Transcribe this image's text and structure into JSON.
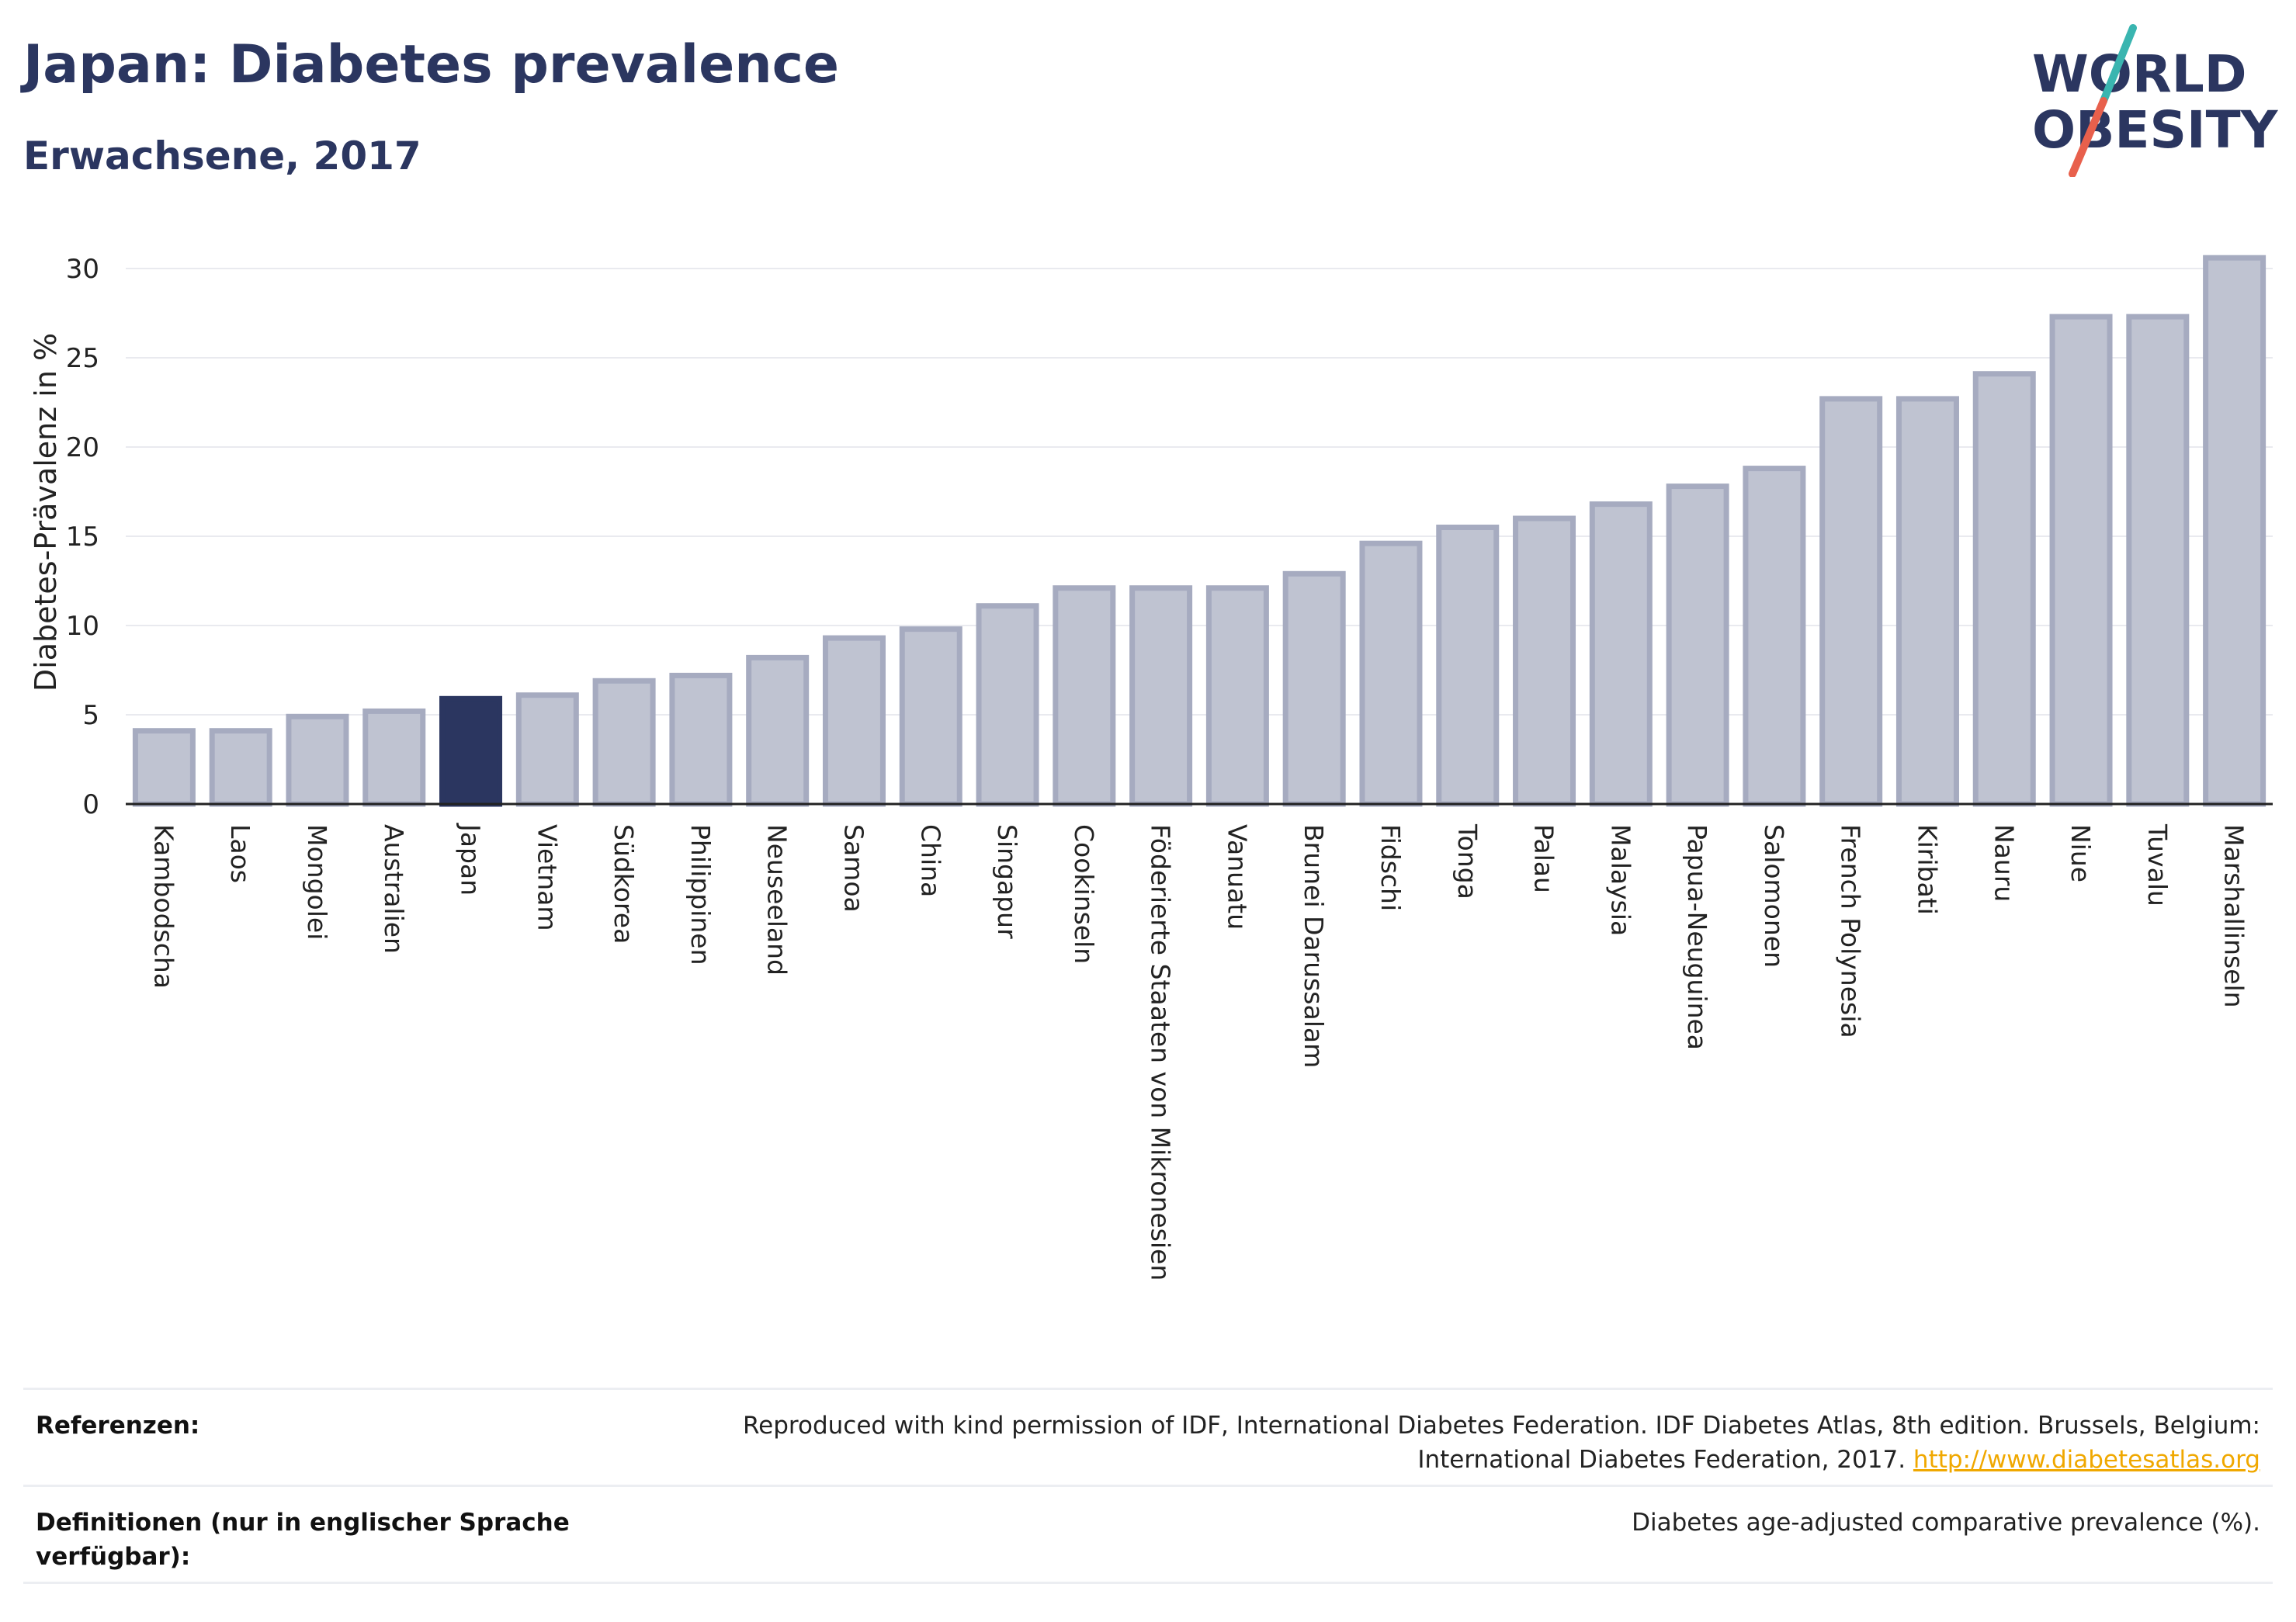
{
  "header": {
    "title": "Japan: Diabetes prevalence",
    "subtitle": "Erwachsene, 2017"
  },
  "logo": {
    "line1": "WORLD",
    "line2": "OBESITY",
    "accent_teal": "#3ab5b0",
    "accent_red": "#e8604c",
    "brand": "#2b3660"
  },
  "colors": {
    "bar": "#bfc3d1",
    "bar_stroke": "#a6abc0",
    "highlight": "#2b3660",
    "grid": "#e9eaef"
  },
  "chart_data": {
    "type": "bar",
    "title": "Japan: Diabetes prevalence",
    "subtitle": "Erwachsene, 2017",
    "xlabel": "",
    "ylabel": "Diabetes-Prävalenz in %",
    "ylim": [
      0,
      32
    ],
    "yticks": [
      0,
      5,
      10,
      15,
      20,
      25,
      30
    ],
    "grid": true,
    "highlight": "Japan",
    "categories": [
      "Kambodscha",
      "Laos",
      "Mongolei",
      "Australien",
      "Japan",
      "Vietnam",
      "Südkorea",
      "Philippinen",
      "Neuseeland",
      "Samoa",
      "China",
      "Singapur",
      "Cookinseln",
      "Föderierte Staaten von Mikronesien",
      "Vanuatu",
      "Brunei Darussalam",
      "Fidschi",
      "Tonga",
      "Palau",
      "Malaysia",
      "Papua-Neuguinea",
      "Salomonen",
      "French Polynesia",
      "Kiribati",
      "Nauru",
      "Niue",
      "Tuvalu",
      "Marshallinseln"
    ],
    "values": [
      4.1,
      4.1,
      4.9,
      5.2,
      5.9,
      6.1,
      6.9,
      7.2,
      8.2,
      9.3,
      9.8,
      11.1,
      12.1,
      12.1,
      12.1,
      12.9,
      14.6,
      15.5,
      16.0,
      16.8,
      17.8,
      18.8,
      22.7,
      22.7,
      24.1,
      27.3,
      27.3,
      30.6
    ]
  },
  "footer": {
    "references_label": "Referenzen:",
    "references_text": "Reproduced with kind permission of IDF, International Diabetes Federation. IDF Diabetes Atlas, 8th edition. Brussels, Belgium: International Diabetes Federation, 2017.",
    "references_link": "http://www.diabetesatlas.org",
    "definitions_label": "Definitionen (nur in englischer Sprache verfügbar):",
    "definitions_text": "Diabetes age-adjusted comparative prevalence (%)."
  }
}
